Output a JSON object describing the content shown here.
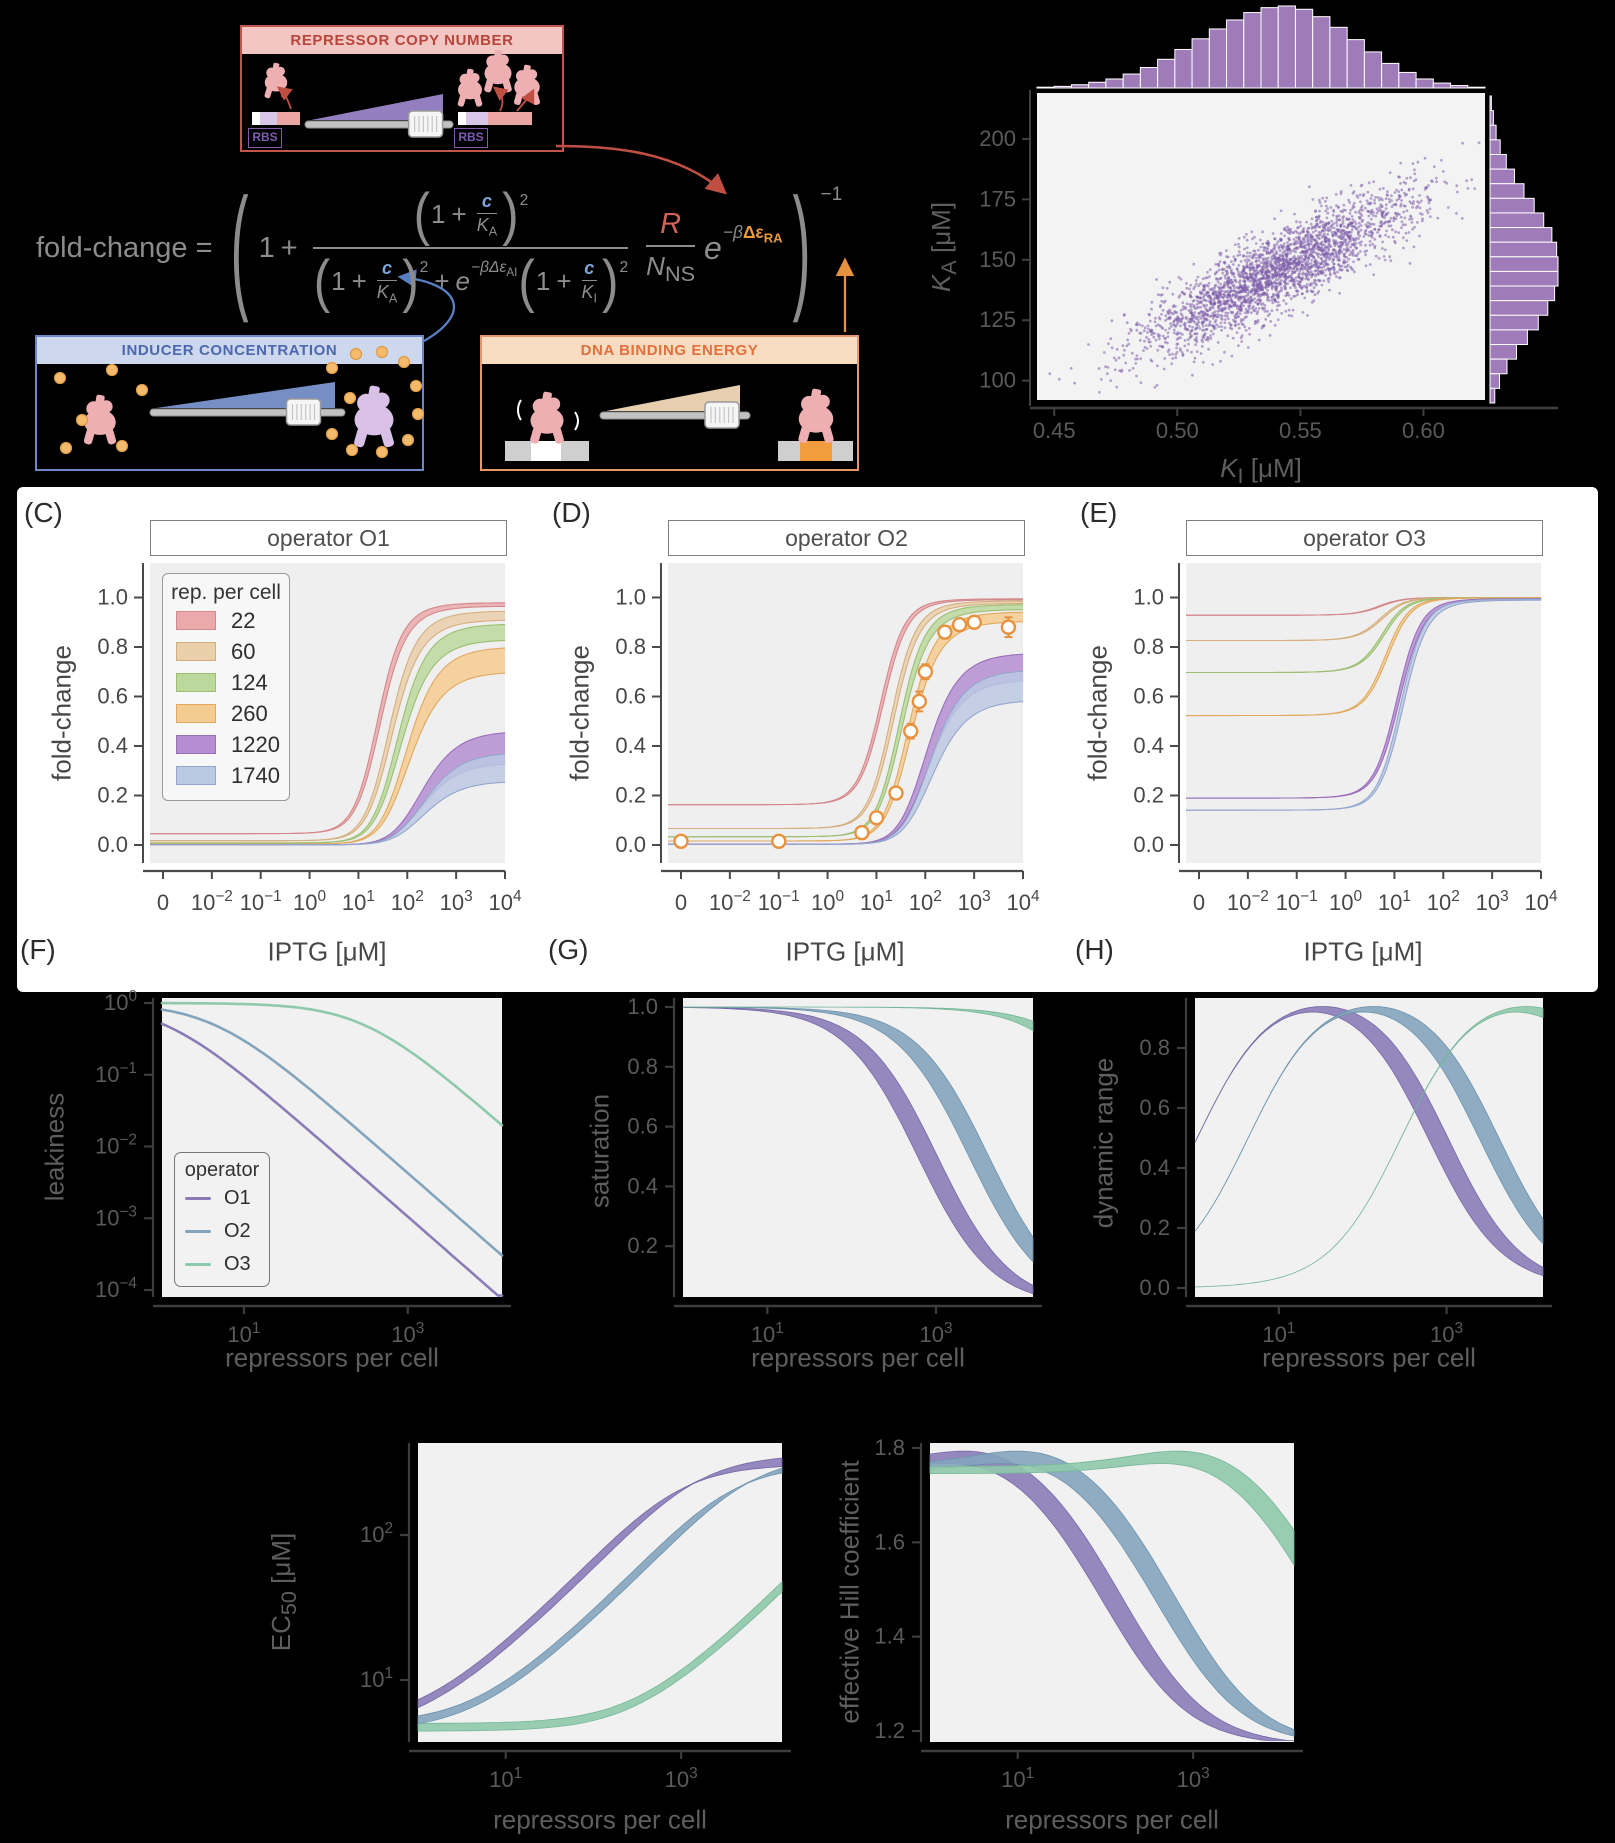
{
  "page": {
    "background": "#000000"
  },
  "colors": {
    "panel_bg": "#f1f1f1",
    "spine": "#3f3f3f",
    "cartoon": {
      "pink": "#eeafb3",
      "purple_rep": "#d9c0e6",
      "dot": "#f5bb6d",
      "dot_stroke": "#dd9a45",
      "dna_gray": "#cfcfcf",
      "dna_white": "#ffffff",
      "dna_lavender": "#d9c7ea",
      "dna_pink": "#eba5a3",
      "dna_orange": "#f39c3d",
      "wedge_purple": "#9b85c9",
      "wedge_blue": "#7b97d0",
      "wedge_tan": "#f2d9b8"
    },
    "arrow_red": "#bf4f43",
    "arrow_blue": "#5b7fc4",
    "arrow_orange": "#e8923f"
  },
  "boxes": {
    "repressor": {
      "title": "REPRESSOR COPY NUMBER",
      "rbs": "RBS",
      "border": "#c0564c",
      "header_bg": "#f2c7c3",
      "header_text": "#b8453b"
    },
    "inducer": {
      "title": "INDUCER CONCENTRATION",
      "border": "#6c87c6",
      "header_bg": "#cdd8ef",
      "header_text": "#4c68ae"
    },
    "dna": {
      "title": "DNA BINDING ENERGY",
      "border": "#e9966a",
      "header_bg": "#f8dcc2",
      "header_text": "#e0713d"
    }
  },
  "formula": {
    "fold_change": "fold-change",
    "eq": "=",
    "one": "1",
    "plus": "+",
    "c": "c",
    "K": "K",
    "sub_A": "A",
    "sub_I": "I",
    "sq": "2",
    "e": "e",
    "neg_beta": "−β",
    "delta_eps": "Δε",
    "sub_AI": "AI",
    "sub_RA": "RA",
    "R": "R",
    "N": "N",
    "sub_NS": "NS",
    "neg_one": "−1",
    "lparen": "(",
    "rparen": ")"
  },
  "panels": {
    "C": {
      "letter": "(C)",
      "title": "operator O1"
    },
    "D": {
      "letter": "(D)",
      "title": "operator O2"
    },
    "E": {
      "letter": "(E)",
      "title": "operator O3"
    },
    "F": {
      "letter": "(F)"
    },
    "G": {
      "letter": "(G)"
    },
    "H": {
      "letter": "(H)"
    }
  },
  "labels": {
    "iptg": "IPTG [μM]",
    "fold_change": "fold-change",
    "repressors": "repressors per cell",
    "leakiness": "leakiness",
    "saturation": "saturation",
    "dynamic_range": "dynamic range",
    "ec50_main": "EC",
    "ec50_sub": "50",
    "unit_uM": " [μM]",
    "hill": "effective Hill coefficient",
    "K": "K",
    "sub_A": "A",
    "sub_I": "I"
  },
  "legends": {
    "rep": {
      "title": "rep. per cell",
      "entries": [
        {
          "label": "22",
          "color": "#eaa9ab",
          "stroke": "#d4888b"
        },
        {
          "label": "60",
          "color": "#eacfab",
          "stroke": "#d4af7e"
        },
        {
          "label": "124",
          "color": "#bcd89d",
          "stroke": "#9cbf72"
        },
        {
          "label": "260",
          "color": "#f4cb90",
          "stroke": "#e0a95f"
        },
        {
          "label": "1220",
          "color": "#b58ed2",
          "stroke": "#9a6fbb"
        },
        {
          "label": "1740",
          "color": "#bcc9e3",
          "stroke": "#93a7cd"
        }
      ]
    },
    "operator": {
      "title": "operator",
      "entries": [
        {
          "label": "O1",
          "color": "#8b7cb8",
          "edge": "#7668a6"
        },
        {
          "label": "O2",
          "color": "#84a4bc",
          "edge": "#6d92ad"
        },
        {
          "label": "O3",
          "color": "#8fc9ab",
          "edge": "#74b697"
        }
      ]
    }
  },
  "chart_data": [
    {
      "id": "posterior",
      "type": "scatter",
      "xlabel": "K_I [μM]",
      "ylabel": "K_A [μM]",
      "xlim": [
        0.443,
        0.625
      ],
      "ylim": [
        92,
        219
      ],
      "xticks": [
        0.45,
        0.5,
        0.55,
        0.6
      ],
      "xtick_labels": [
        "0.45",
        "0.50",
        "0.55",
        "0.60"
      ],
      "yticks": [
        100,
        125,
        150,
        175,
        200
      ],
      "ytick_labels": [
        "100",
        "125",
        "150",
        "175",
        "200"
      ],
      "n_points": 2600,
      "center": {
        "x": 0.54,
        "y": 145
      },
      "std": {
        "x": 0.028,
        "y": 16.5
      },
      "corr": 0.87,
      "point_color": "#7e5fa9",
      "hist_color": "#9f7bba",
      "marginal_top": [
        0.01,
        0.02,
        0.04,
        0.07,
        0.11,
        0.17,
        0.25,
        0.35,
        0.47,
        0.6,
        0.72,
        0.83,
        0.92,
        0.98,
        1.0,
        0.96,
        0.87,
        0.74,
        0.59,
        0.44,
        0.3,
        0.19,
        0.11,
        0.06,
        0.03,
        0.01
      ],
      "marginal_right": [
        0.02,
        0.05,
        0.09,
        0.15,
        0.24,
        0.36,
        0.5,
        0.65,
        0.79,
        0.91,
        0.98,
        1.0,
        1.0,
        0.95,
        0.85,
        0.71,
        0.55,
        0.39,
        0.25,
        0.14,
        0.07
      ]
    },
    {
      "id": "induction",
      "type": "line-band",
      "panels": [
        {
          "id": "C",
          "operator": "O1"
        },
        {
          "id": "D",
          "operator": "O2"
        },
        {
          "id": "E",
          "operator": "O3"
        }
      ],
      "xlabel": "IPTG [μM]",
      "ylabel": "fold-change",
      "xticks": [
        {
          "b": "0"
        },
        {
          "b": "10",
          "e": "−2"
        },
        {
          "b": "10",
          "e": "−1"
        },
        {
          "b": "10",
          "e": "0"
        },
        {
          "b": "10",
          "e": "1"
        },
        {
          "b": "10",
          "e": "2"
        },
        {
          "b": "10",
          "e": "3"
        },
        {
          "b": "10",
          "e": "4"
        }
      ],
      "ytick_labels": [
        "0.0",
        "0.2",
        "0.4",
        "0.6",
        "0.8",
        "1.0"
      ],
      "repressors": [
        22,
        60,
        124,
        260,
        1220,
        1740
      ],
      "model": {
        "K_A_uM": 139,
        "K_I_uM": 0.53,
        "beta_dE_AI": 4.5,
        "N_NS": 4600000,
        "dE_RA_kT": {
          "O1": -15.3,
          "O2": -13.9,
          "O3": -9.7
        },
        "band": {
          "upper": {
            "K_A_uM": 150,
            "K_I_uM": 0.5
          },
          "lower": {
            "K_A_uM": 128,
            "K_I_uM": 0.56
          }
        }
      },
      "data_points": {
        "operator": "O2",
        "repressors": 260,
        "color": "#e8923f",
        "IPTG_uM": [
          0,
          0.1,
          5,
          10,
          25,
          50,
          75,
          100,
          250,
          500,
          1000,
          5000
        ],
        "fold_change": [
          0.015,
          0.015,
          0.05,
          0.11,
          0.21,
          0.46,
          0.58,
          0.7,
          0.86,
          0.89,
          0.9,
          0.88
        ],
        "err": [
          0.012,
          0.012,
          0.012,
          0.015,
          0.02,
          0.03,
          0.04,
          0.03,
          0.025,
          0.02,
          0.02,
          0.04
        ]
      }
    },
    {
      "id": "properties",
      "type": "line-band",
      "xlabel": "repressors per cell",
      "xticks": [
        {
          "b": "10",
          "e": "1"
        },
        {
          "b": "10",
          "e": "3"
        }
      ],
      "log_R_range": [
        0,
        4.15
      ],
      "panels": [
        {
          "id": "F",
          "metric": "leakiness",
          "yscale": "log",
          "yticks": [
            {
              "b": "10",
              "e": "0"
            },
            {
              "b": "10",
              "e": "−1"
            },
            {
              "b": "10",
              "e": "−2"
            },
            {
              "b": "10",
              "e": "−3"
            },
            {
              "b": "10",
              "e": "−4"
            }
          ]
        },
        {
          "id": "G",
          "metric": "saturation",
          "yscale": "linear",
          "ytick_labels": [
            "1.0",
            "0.8",
            "0.6",
            "0.4",
            "0.2"
          ]
        },
        {
          "id": "H",
          "metric": "dynamic range",
          "yscale": "linear",
          "ytick_labels": [
            "0.8",
            "0.6",
            "0.4",
            "0.2",
            "0.0"
          ]
        },
        {
          "id": "EC50",
          "metric": "[EC50] (μM)",
          "yscale": "log",
          "yticks": [
            {
              "b": "10",
              "e": "2"
            },
            {
              "b": "10",
              "e": "1"
            }
          ]
        },
        {
          "id": "HILL",
          "metric": "effective Hill coefficient",
          "yscale": "linear",
          "ytick_labels": [
            "1.8",
            "1.6",
            "1.4",
            "1.2"
          ]
        }
      ]
    }
  ]
}
